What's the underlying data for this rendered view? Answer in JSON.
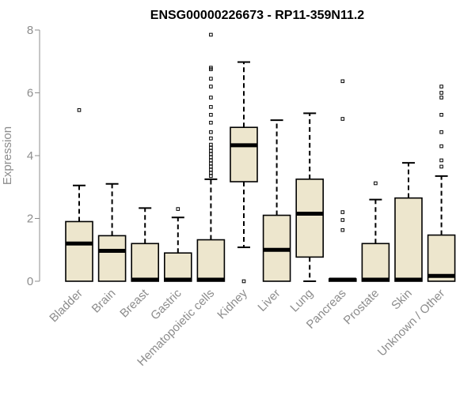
{
  "chart_data": {
    "type": "box",
    "title": "ENSG00000226673 - RP11-359N11.2",
    "ylabel": "Expression",
    "xlabel": "",
    "ylim": [
      0,
      8
    ],
    "yticks": [
      0,
      2,
      4,
      6,
      8
    ],
    "grid": false,
    "box_fill": "#ede6cd",
    "categories": [
      "Bladder",
      "Brain",
      "Breast",
      "Gastric",
      "Hematopoietic cells",
      "Kidney",
      "Liver",
      "Lung",
      "Pancreas",
      "Prostate",
      "Skin",
      "Unknown / Other"
    ],
    "series": [
      {
        "whisker_low": 0,
        "q1": 0,
        "median": 1.2,
        "q3": 1.9,
        "whisker_high": 3.05,
        "outliers": [
          5.45
        ]
      },
      {
        "whisker_low": 0,
        "q1": 0,
        "median": 0.97,
        "q3": 1.45,
        "whisker_high": 3.1,
        "outliers": []
      },
      {
        "whisker_low": 0,
        "q1": 0,
        "median": 0,
        "q3": 1.2,
        "whisker_high": 2.33,
        "outliers": []
      },
      {
        "whisker_low": 0,
        "q1": 0,
        "median": 0,
        "q3": 0.9,
        "whisker_high": 2.03,
        "outliers": [
          2.3
        ]
      },
      {
        "whisker_low": 0,
        "q1": 0,
        "median": 0,
        "q3": 1.32,
        "whisker_high": 3.25,
        "outliers": [
          3.35,
          3.45,
          3.55,
          3.65,
          3.75,
          3.85,
          3.95,
          4.05,
          4.15,
          4.25,
          4.35,
          4.55,
          4.75,
          5.05,
          5.3,
          5.55,
          5.85,
          6.2,
          6.45,
          6.75,
          6.8,
          7.85
        ]
      },
      {
        "whisker_low": 1.08,
        "q1": 3.17,
        "median": 4.33,
        "q3": 4.9,
        "whisker_high": 6.98,
        "outliers": [
          0
        ]
      },
      {
        "whisker_low": 0,
        "q1": 0,
        "median": 1.0,
        "q3": 2.1,
        "whisker_high": 5.13,
        "outliers": []
      },
      {
        "whisker_low": 0,
        "q1": 0.77,
        "median": 2.15,
        "q3": 3.25,
        "whisker_high": 5.35,
        "outliers": []
      },
      {
        "whisker_low": 0,
        "q1": 0,
        "median": 0,
        "q3": 0,
        "whisker_high": 0,
        "outliers": [
          1.63,
          1.95,
          2.2,
          5.17,
          6.37
        ]
      },
      {
        "whisker_low": 0,
        "q1": 0,
        "median": 0,
        "q3": 1.2,
        "whisker_high": 2.6,
        "outliers": [
          3.12
        ]
      },
      {
        "whisker_low": 0,
        "q1": 0,
        "median": 0,
        "q3": 2.65,
        "whisker_high": 3.77,
        "outliers": []
      },
      {
        "whisker_low": 0,
        "q1": 0,
        "median": 0.17,
        "q3": 1.47,
        "whisker_high": 3.35,
        "outliers": [
          3.65,
          3.85,
          4.3,
          4.75,
          5.3,
          5.85,
          6.0,
          6.2
        ]
      }
    ]
  }
}
